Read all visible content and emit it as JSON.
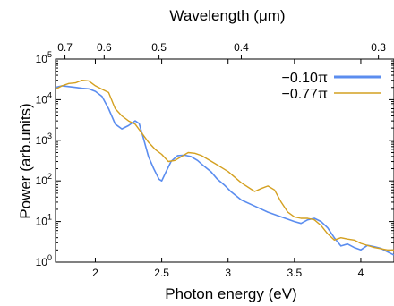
{
  "chart_data": {
    "type": "line",
    "title": "",
    "xlabel": "Photon energy (eV)",
    "ylabel": "Power (arb.units)",
    "top_axis_label": "Wavelength (μm)",
    "xlim": [
      1.7,
      4.25
    ],
    "ylim": [
      1,
      100000
    ],
    "y_scale": "log",
    "grid": false,
    "legend_position": "top-right",
    "x_ticks": [
      "2",
      "2.5",
      "3",
      "3.5",
      "4"
    ],
    "y_ticks": [
      "10^0",
      "10^1",
      "10^2",
      "10^3",
      "10^4",
      "10^5"
    ],
    "top_ticks": [
      "0.7",
      "0.6",
      "0.5",
      "0.4",
      "0.3"
    ],
    "top_tick_wavelengths_um": [
      0.7,
      0.6,
      0.5,
      0.4,
      0.3
    ],
    "series": [
      {
        "name": "−0.10π",
        "color": "#5b8def",
        "x": [
          1.7,
          1.75,
          1.8,
          1.85,
          1.9,
          1.95,
          2.0,
          2.05,
          2.1,
          2.15,
          2.2,
          2.25,
          2.3,
          2.33,
          2.36,
          2.4,
          2.44,
          2.48,
          2.5,
          2.53,
          2.57,
          2.62,
          2.67,
          2.72,
          2.77,
          2.82,
          2.87,
          2.92,
          2.97,
          3.02,
          3.1,
          3.2,
          3.3,
          3.4,
          3.5,
          3.55,
          3.6,
          3.65,
          3.7,
          3.75,
          3.8,
          3.85,
          3.9,
          3.95,
          4.0,
          4.05,
          4.1,
          4.15,
          4.2,
          4.25
        ],
        "y": [
          20000,
          22000,
          21000,
          20000,
          19000,
          18500,
          16000,
          12000,
          6000,
          2500,
          1900,
          2300,
          3000,
          2600,
          1200,
          400,
          200,
          110,
          100,
          160,
          300,
          420,
          430,
          400,
          320,
          230,
          170,
          110,
          80,
          55,
          34,
          24,
          17,
          13,
          10,
          9,
          11,
          12,
          10,
          7,
          4,
          2.5,
          2.8,
          2.3,
          2.0,
          2.6,
          2.4,
          2.2,
          1.8,
          1.5
        ]
      },
      {
        "name": "−0.77π",
        "color": "#d4a020",
        "x": [
          1.7,
          1.75,
          1.8,
          1.85,
          1.9,
          1.95,
          2.0,
          2.05,
          2.1,
          2.15,
          2.2,
          2.25,
          2.3,
          2.35,
          2.4,
          2.45,
          2.5,
          2.55,
          2.6,
          2.65,
          2.7,
          2.75,
          2.8,
          2.9,
          3.0,
          3.1,
          3.2,
          3.25,
          3.3,
          3.35,
          3.4,
          3.45,
          3.5,
          3.55,
          3.6,
          3.65,
          3.7,
          3.75,
          3.8,
          3.85,
          3.9,
          3.95,
          4.0,
          4.1,
          4.2,
          4.25
        ],
        "y": [
          18000,
          22000,
          25000,
          26000,
          30000,
          29000,
          22000,
          18000,
          15000,
          6000,
          4000,
          3000,
          2500,
          1500,
          900,
          600,
          450,
          300,
          320,
          400,
          500,
          480,
          420,
          270,
          170,
          90,
          55,
          65,
          75,
          60,
          30,
          17,
          13,
          12,
          12,
          11,
          8,
          5,
          3.5,
          4,
          3.7,
          3.5,
          2.9,
          2.3,
          2.0,
          2.0
        ]
      }
    ]
  }
}
